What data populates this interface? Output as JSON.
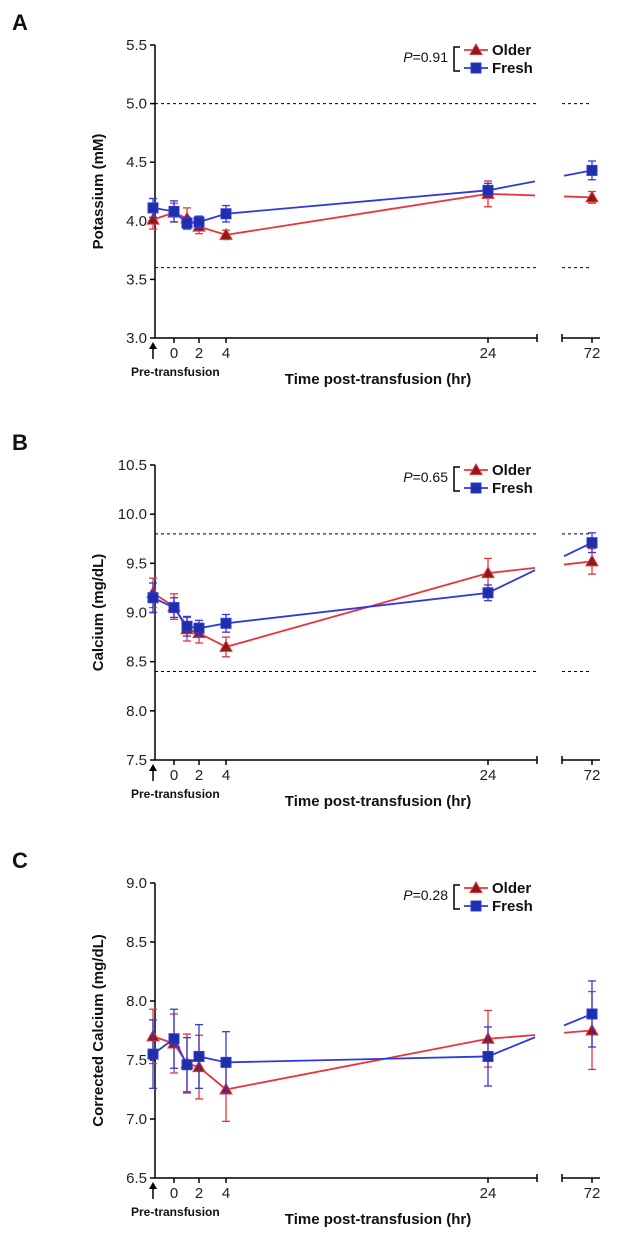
{
  "colors": {
    "older": "#e8343f",
    "fresh": "#2f3ad8",
    "older_marker": "#8b1a1a",
    "fresh_marker": "#1f2fa8",
    "reference": "#000000"
  },
  "chart_data": [
    {
      "type": "line",
      "panel_label": "A",
      "ylabel": "Potassium (mM)",
      "xlabel": "Time post-transfusion (hr)",
      "pre_label": "Pre-transfusion",
      "ylim": [
        3.0,
        5.5
      ],
      "yticks": [
        "3.0",
        "3.5",
        "4.0",
        "4.5",
        "5.0",
        "5.5"
      ],
      "xticks": [
        "0",
        "2",
        "4",
        "24",
        "72"
      ],
      "reference_lines": [
        5.0,
        3.6
      ],
      "p_value": "=0.91",
      "p_letter": "P",
      "series": [
        {
          "name": "Older",
          "marker": "triangle",
          "points": [
            {
              "x": "pre",
              "y": 4.01,
              "err": 0.08
            },
            {
              "x": 0,
              "y": 4.07,
              "err": 0.08
            },
            {
              "x": 1,
              "y": 4.02,
              "err": 0.09
            },
            {
              "x": 2,
              "y": 3.95,
              "err": 0.06
            },
            {
              "x": 4,
              "y": 3.88,
              "err": 0.04
            },
            {
              "x": 24,
              "y": 4.23,
              "err": 0.11
            },
            {
              "x": 72,
              "y": 4.2,
              "err": 0.05
            }
          ]
        },
        {
          "name": "Fresh",
          "marker": "square",
          "points": [
            {
              "x": "pre",
              "y": 4.11,
              "err": 0.08
            },
            {
              "x": 0,
              "y": 4.08,
              "err": 0.09
            },
            {
              "x": 1,
              "y": 3.98,
              "err": 0.05
            },
            {
              "x": 2,
              "y": 3.99,
              "err": 0.05
            },
            {
              "x": 4,
              "y": 4.06,
              "err": 0.07
            },
            {
              "x": 24,
              "y": 4.26,
              "err": 0.06
            },
            {
              "x": 72,
              "y": 4.43,
              "err": 0.08
            }
          ]
        }
      ]
    },
    {
      "type": "line",
      "panel_label": "B",
      "ylabel": "Calcium (mg/dL)",
      "xlabel": "Time post-transfusion (hr)",
      "pre_label": "Pre-transfusion",
      "ylim": [
        7.5,
        10.5
      ],
      "yticks": [
        "7.5",
        "8.0",
        "8.5",
        "9.0",
        "9.5",
        "10.0",
        "10.5"
      ],
      "xticks": [
        "0",
        "2",
        "4",
        "24",
        "72"
      ],
      "reference_lines": [
        9.8,
        8.4
      ],
      "p_value": "=0.65",
      "p_letter": "P",
      "series": [
        {
          "name": "Older",
          "marker": "triangle",
          "points": [
            {
              "x": "pre",
              "y": 9.2,
              "err": 0.15
            },
            {
              "x": 0,
              "y": 9.06,
              "err": 0.13
            },
            {
              "x": 1,
              "y": 8.83,
              "err": 0.12
            },
            {
              "x": 2,
              "y": 8.79,
              "err": 0.1
            },
            {
              "x": 4,
              "y": 8.65,
              "err": 0.1
            },
            {
              "x": 24,
              "y": 9.4,
              "err": 0.15
            },
            {
              "x": 72,
              "y": 9.52,
              "err": 0.13
            }
          ]
        },
        {
          "name": "Fresh",
          "marker": "square",
          "points": [
            {
              "x": "pre",
              "y": 9.15,
              "err": 0.15
            },
            {
              "x": 0,
              "y": 9.05,
              "err": 0.1
            },
            {
              "x": 1,
              "y": 8.86,
              "err": 0.1
            },
            {
              "x": 2,
              "y": 8.84,
              "err": 0.08
            },
            {
              "x": 4,
              "y": 8.89,
              "err": 0.09
            },
            {
              "x": 24,
              "y": 9.2,
              "err": 0.08
            },
            {
              "x": 72,
              "y": 9.71,
              "err": 0.1
            }
          ]
        }
      ]
    },
    {
      "type": "line",
      "panel_label": "C",
      "ylabel": "Corrected Calcium (mg/dL)",
      "xlabel": "Time post-transfusion (hr)",
      "pre_label": "Pre-transfusion",
      "ylim": [
        6.5,
        9.0
      ],
      "yticks": [
        "6.5",
        "7.0",
        "7.5",
        "8.0",
        "8.5",
        "9.0"
      ],
      "xticks": [
        "0",
        "2",
        "4",
        "24",
        "72"
      ],
      "reference_lines": [],
      "p_value": "=0.28",
      "p_letter": "P",
      "series": [
        {
          "name": "Older",
          "marker": "triangle",
          "points": [
            {
              "x": "pre",
              "y": 7.7,
              "err": 0.23
            },
            {
              "x": 0,
              "y": 7.64,
              "err": 0.25
            },
            {
              "x": 1,
              "y": 7.47,
              "err": 0.25
            },
            {
              "x": 2,
              "y": 7.44,
              "err": 0.27
            },
            {
              "x": 4,
              "y": 7.25,
              "err": 0.27
            },
            {
              "x": 24,
              "y": 7.68,
              "err": 0.24
            },
            {
              "x": 72,
              "y": 7.75,
              "err": 0.33
            }
          ]
        },
        {
          "name": "Fresh",
          "marker": "square",
          "points": [
            {
              "x": "pre",
              "y": 7.55,
              "err": 0.29
            },
            {
              "x": 0,
              "y": 7.68,
              "err": 0.25
            },
            {
              "x": 1,
              "y": 7.46,
              "err": 0.23
            },
            {
              "x": 2,
              "y": 7.53,
              "err": 0.27
            },
            {
              "x": 4,
              "y": 7.48,
              "err": 0.26
            },
            {
              "x": 24,
              "y": 7.53,
              "err": 0.25
            },
            {
              "x": 72,
              "y": 7.89,
              "err": 0.28
            }
          ]
        }
      ]
    }
  ]
}
